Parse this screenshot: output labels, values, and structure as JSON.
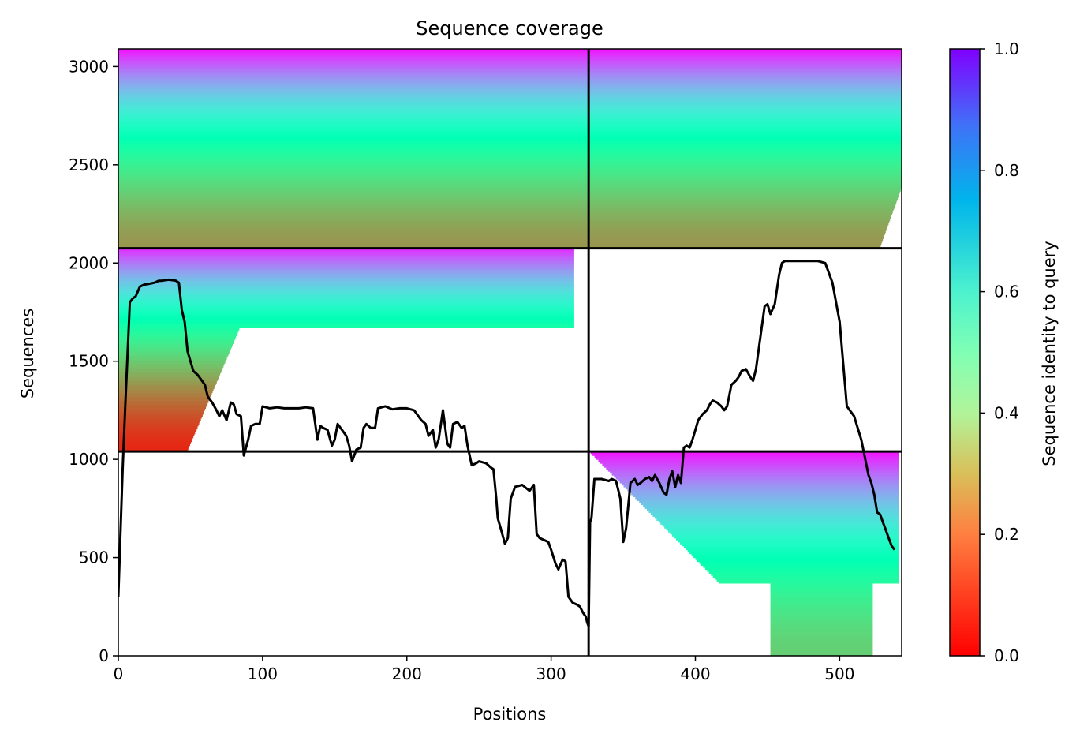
{
  "chart_data": {
    "type": "heatmap",
    "title": "Sequence coverage",
    "xlabel": "Positions",
    "ylabel": "Sequences",
    "colorbar_label": "Sequence identity to query",
    "xlim": [
      0,
      543
    ],
    "ylim": [
      0,
      3090
    ],
    "xticks": [
      0,
      100,
      200,
      300,
      400,
      500
    ],
    "yticks": [
      0,
      500,
      1000,
      1500,
      2000,
      2500,
      3000
    ],
    "colorbar_ticks": [
      "0.0",
      "0.2",
      "0.4",
      "0.6",
      "0.8",
      "1.0"
    ],
    "colormap": "rainbow_r",
    "grid": false,
    "chain_boundary_x": 326,
    "block_boundaries_y": [
      1040,
      2075
    ],
    "blocks": [
      {
        "rows": [
          0,
          1040
        ],
        "cols": [
          326,
          543
        ],
        "identity_range": [
          0.3,
          0.98
        ],
        "dense_cols": [
          452,
          523
        ]
      },
      {
        "rows": [
          1040,
          2075
        ],
        "cols": [
          0,
          326
        ],
        "identity_range": [
          0.05,
          0.95
        ],
        "dense_cols": [
          0,
          48
        ]
      },
      {
        "rows": [
          2075,
          3090
        ],
        "cols": [
          0,
          543
        ],
        "identity_range": [
          0.2,
          0.98
        ],
        "dense_cols": [
          0,
          543
        ]
      }
    ],
    "coverage_line": {
      "x": [
        0,
        3,
        5,
        8,
        10,
        12,
        15,
        18,
        22,
        25,
        28,
        30,
        35,
        40,
        42,
        44,
        46,
        48,
        50,
        52,
        55,
        58,
        60,
        62,
        65,
        68,
        70,
        72,
        75,
        78,
        80,
        82,
        85,
        87,
        90,
        92,
        95,
        98,
        100,
        105,
        110,
        115,
        120,
        125,
        130,
        135,
        138,
        140,
        142,
        145,
        148,
        150,
        152,
        155,
        158,
        160,
        162,
        165,
        168,
        170,
        172,
        175,
        178,
        180,
        185,
        190,
        195,
        200,
        205,
        210,
        213,
        215,
        218,
        220,
        222,
        225,
        228,
        230,
        232,
        235,
        238,
        240,
        242,
        245,
        248,
        250,
        255,
        258,
        260,
        262,
        263,
        265,
        268,
        270,
        272,
        275,
        280,
        285,
        288,
        290,
        292,
        295,
        298,
        300,
        303,
        305,
        308,
        310,
        312,
        315,
        318,
        320,
        322,
        324,
        325,
        326,
        327,
        328,
        330,
        335,
        340,
        342,
        345,
        348,
        350,
        352,
        355,
        358,
        360,
        362,
        365,
        368,
        370,
        372,
        375,
        378,
        380,
        382,
        384,
        386,
        388,
        390,
        392,
        394,
        396,
        398,
        400,
        402,
        405,
        408,
        410,
        412,
        415,
        418,
        420,
        422,
        425,
        428,
        430,
        432,
        435,
        438,
        440,
        442,
        445,
        448,
        450,
        452,
        455,
        458,
        460,
        462,
        465,
        468,
        470,
        475,
        480,
        485,
        490,
        495,
        500,
        505,
        510,
        515,
        520,
        522,
        524,
        526,
        528,
        530,
        532,
        534,
        536,
        538,
        540,
        541,
        542,
        543
      ],
      "y": [
        300,
        950,
        1300,
        1800,
        1820,
        1830,
        1880,
        1890,
        1895,
        1900,
        1910,
        1910,
        1915,
        1910,
        1900,
        1760,
        1700,
        1550,
        1500,
        1450,
        1430,
        1400,
        1380,
        1320,
        1290,
        1250,
        1220,
        1250,
        1200,
        1290,
        1280,
        1230,
        1220,
        1020,
        1100,
        1170,
        1180,
        1180,
        1270,
        1260,
        1265,
        1260,
        1260,
        1260,
        1265,
        1260,
        1100,
        1170,
        1160,
        1150,
        1070,
        1100,
        1180,
        1150,
        1120,
        1070,
        990,
        1050,
        1060,
        1160,
        1180,
        1160,
        1160,
        1260,
        1270,
        1255,
        1260,
        1260,
        1250,
        1200,
        1180,
        1120,
        1150,
        1060,
        1100,
        1250,
        1080,
        1060,
        1180,
        1190,
        1160,
        1170,
        1070,
        970,
        980,
        990,
        980,
        960,
        950,
        800,
        700,
        650,
        570,
        600,
        800,
        860,
        870,
        840,
        870,
        620,
        600,
        590,
        580,
        540,
        470,
        440,
        490,
        480,
        300,
        270,
        260,
        250,
        220,
        200,
        170,
        150,
        680,
        700,
        900,
        900,
        890,
        900,
        890,
        800,
        580,
        650,
        880,
        900,
        870,
        880,
        900,
        910,
        890,
        920,
        880,
        830,
        820,
        900,
        940,
        860,
        920,
        880,
        1060,
        1070,
        1060,
        1100,
        1150,
        1200,
        1230,
        1250,
        1280,
        1300,
        1290,
        1270,
        1250,
        1270,
        1380,
        1400,
        1420,
        1450,
        1460,
        1420,
        1400,
        1460,
        1620,
        1780,
        1790,
        1740,
        1790,
        1940,
        2000,
        2010,
        2010,
        2010,
        2010,
        2010,
        2010,
        2010,
        2000,
        1900,
        1700,
        1270,
        1220,
        1100,
        920,
        880,
        820,
        730,
        720,
        680,
        640,
        600,
        560,
        540
      ]
    }
  }
}
